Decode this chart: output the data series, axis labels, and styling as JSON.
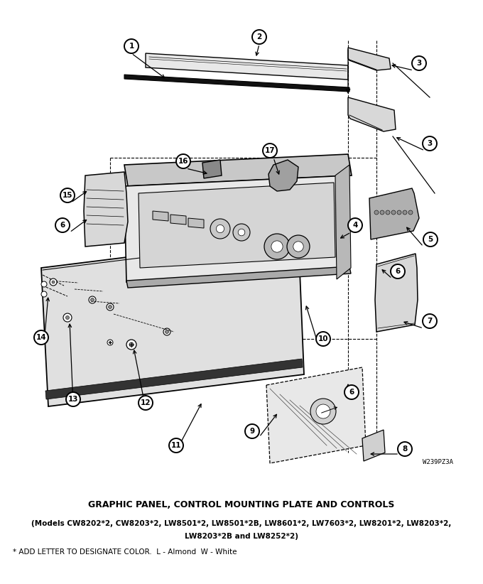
{
  "title_line1": "GRAPHIC PANEL, CONTROL MOUNTING PLATE AND CONTROLS",
  "title_line2": "(Models CW8202*2, CW8203*2, LW8501*2, LW8501*2B, LW8601*2, LW7603*2, LW8201*2, LW8203*2,",
  "title_line3": "LW8203*2B and LW8252*2)",
  "footnote": "* ADD LETTER TO DESIGNATE COLOR.  L - Almond  W - White",
  "watermark": "W239PZ3A",
  "bg_color": "#ffffff",
  "fig_width": 6.8,
  "fig_height": 8.22,
  "dpi": 100
}
